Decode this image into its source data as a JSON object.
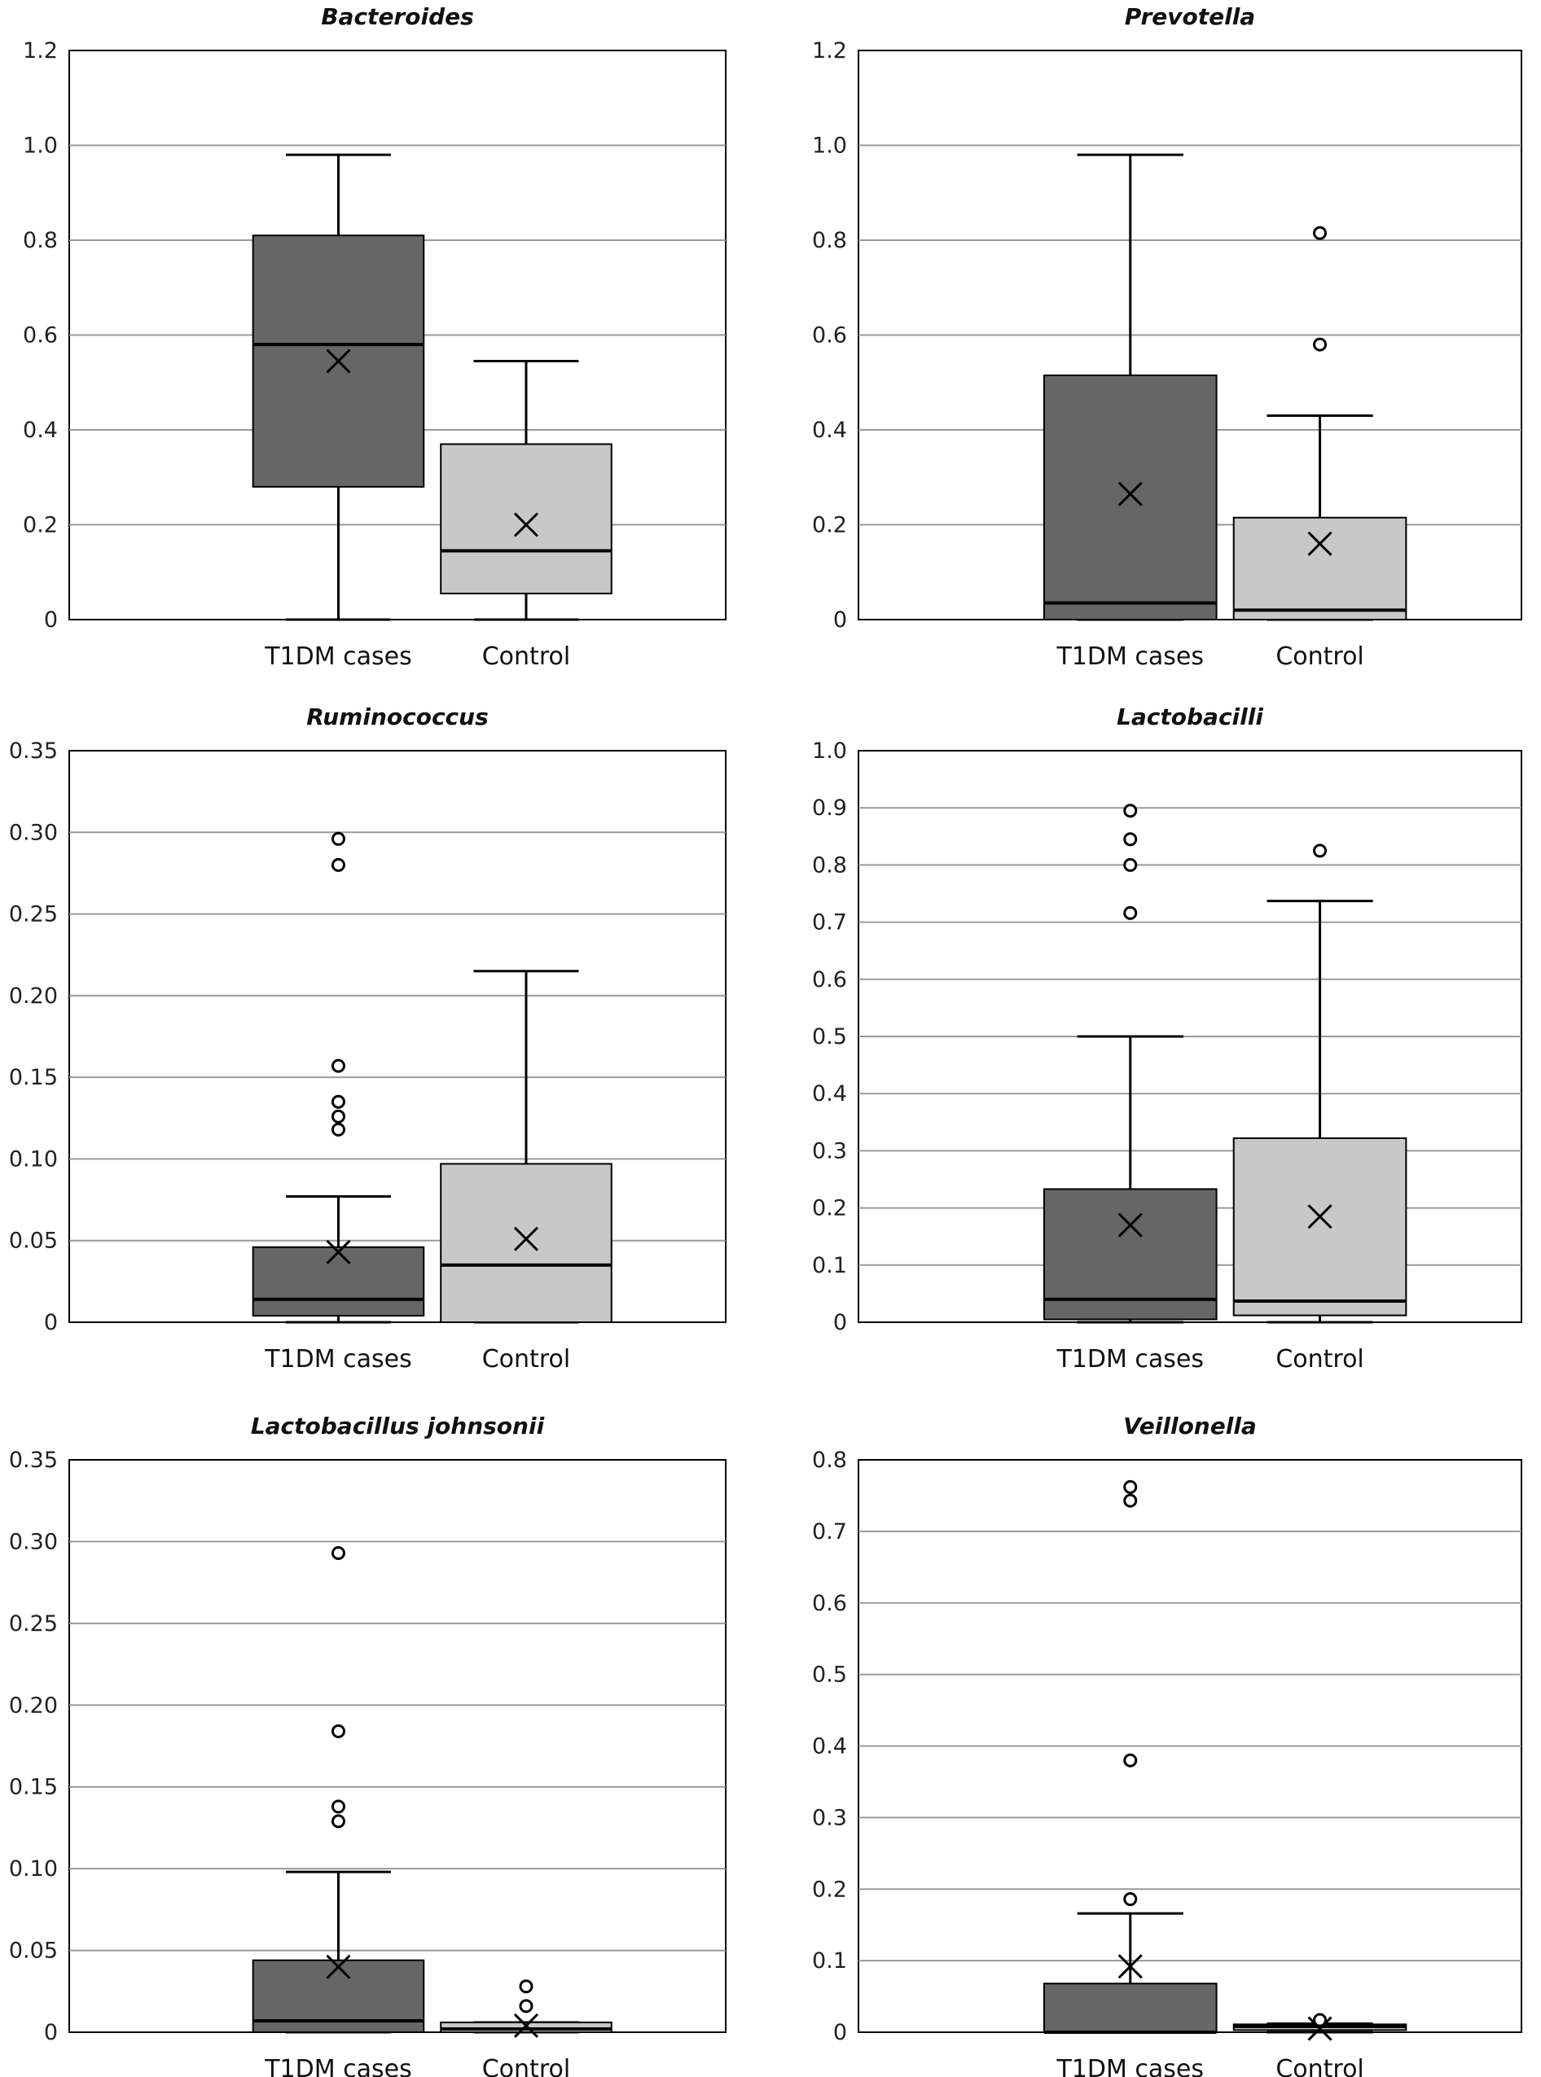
{
  "chart_data": [
    {
      "type": "box",
      "title": "Bacteroides",
      "categories": [
        "T1DM cases",
        "Control"
      ],
      "ylim": [
        0,
        1.2
      ],
      "yticks": [
        "0",
        "0.2",
        "0.4",
        "0.6",
        "0.8",
        "1.0",
        "1.2"
      ],
      "ytick_values": [
        0,
        0.2,
        0.4,
        0.6,
        0.8,
        1.0,
        1.2
      ],
      "grid": true,
      "series": [
        {
          "min": 0,
          "q1": 0.28,
          "median": 0.58,
          "q3": 0.81,
          "max": 0.98,
          "mean": 0.545,
          "outliers": []
        },
        {
          "min": 0,
          "q1": 0.055,
          "median": 0.145,
          "q3": 0.37,
          "max": 0.545,
          "mean": 0.2,
          "outliers": []
        }
      ]
    },
    {
      "type": "box",
      "title": "Prevotella",
      "categories": [
        "T1DM cases",
        "Control"
      ],
      "ylim": [
        0,
        1.2
      ],
      "yticks": [
        "0",
        "0.2",
        "0.4",
        "0.6",
        "0.8",
        "1.0",
        "1.2"
      ],
      "ytick_values": [
        0,
        0.2,
        0.4,
        0.6,
        0.8,
        1.0,
        1.2
      ],
      "grid": true,
      "series": [
        {
          "min": 0,
          "q1": 0,
          "median": 0.035,
          "q3": 0.515,
          "max": 0.98,
          "mean": 0.265,
          "outliers": []
        },
        {
          "min": 0,
          "q1": 0,
          "median": 0.02,
          "q3": 0.215,
          "max": 0.43,
          "mean": 0.16,
          "outliers": [
            0.58,
            0.815
          ]
        }
      ]
    },
    {
      "type": "box",
      "title": "Ruminococcus",
      "categories": [
        "T1DM cases",
        "Control"
      ],
      "ylim": [
        0,
        0.35
      ],
      "yticks": [
        "0",
        "0.05",
        "0.10",
        "0.15",
        "0.20",
        "0.25",
        "0.30",
        "0.35"
      ],
      "ytick_values": [
        0,
        0.05,
        0.1,
        0.15,
        0.2,
        0.25,
        0.3,
        0.35
      ],
      "grid": true,
      "series": [
        {
          "min": 0,
          "q1": 0.004,
          "median": 0.014,
          "q3": 0.046,
          "max": 0.077,
          "mean": 0.043,
          "outliers": [
            0.118,
            0.126,
            0.135,
            0.157,
            0.28,
            0.296
          ]
        },
        {
          "min": 0,
          "q1": 0,
          "median": 0.035,
          "q3": 0.097,
          "max": 0.215,
          "mean": 0.051,
          "outliers": []
        }
      ]
    },
    {
      "type": "box",
      "title": "Lactobacilli",
      "categories": [
        "T1DM cases",
        "Control"
      ],
      "ylim": [
        0,
        1.0
      ],
      "yticks": [
        "0",
        "0.1",
        "0.2",
        "0.3",
        "0.4",
        "0.5",
        "0.6",
        "0.7",
        "0.8",
        "0.9",
        "1.0"
      ],
      "ytick_values": [
        0,
        0.1,
        0.2,
        0.3,
        0.4,
        0.5,
        0.6,
        0.7,
        0.8,
        0.9,
        1.0
      ],
      "grid": true,
      "series": [
        {
          "min": 0,
          "q1": 0.005,
          "median": 0.04,
          "q3": 0.233,
          "max": 0.5,
          "mean": 0.17,
          "outliers": [
            0.716,
            0.8,
            0.845,
            0.895
          ]
        },
        {
          "min": 0,
          "q1": 0.012,
          "median": 0.037,
          "q3": 0.322,
          "max": 0.737,
          "mean": 0.185,
          "outliers": [
            0.825
          ]
        }
      ]
    },
    {
      "type": "box",
      "title": "Lactobacillus johnsonii",
      "categories": [
        "T1DM cases",
        "Control"
      ],
      "ylim": [
        0,
        0.35
      ],
      "yticks": [
        "0",
        "0.05",
        "0.10",
        "0.15",
        "0.20",
        "0.25",
        "0.30",
        "0.35"
      ],
      "ytick_values": [
        0,
        0.05,
        0.1,
        0.15,
        0.2,
        0.25,
        0.3,
        0.35
      ],
      "grid": true,
      "series": [
        {
          "min": 0,
          "q1": 0,
          "median": 0.007,
          "q3": 0.044,
          "max": 0.098,
          "mean": 0.04,
          "outliers": [
            0.129,
            0.138,
            0.184,
            0.293
          ]
        },
        {
          "min": 0,
          "q1": 0,
          "median": 0.002,
          "q3": 0.006,
          "max": 0.006,
          "mean": 0.004,
          "outliers": [
            0.016,
            0.028
          ]
        }
      ]
    },
    {
      "type": "box",
      "title": "Veillonella",
      "categories": [
        "T1DM cases",
        "Control"
      ],
      "ylim": [
        0,
        0.8
      ],
      "yticks": [
        "0",
        "0.1",
        "0.2",
        "0.3",
        "0.4",
        "0.5",
        "0.6",
        "0.7",
        "0.8"
      ],
      "ytick_values": [
        0,
        0.1,
        0.2,
        0.3,
        0.4,
        0.5,
        0.6,
        0.7,
        0.8
      ],
      "grid": true,
      "series": [
        {
          "min": 0,
          "q1": 0,
          "median": 0,
          "q3": 0.068,
          "max": 0.166,
          "mean": 0.092,
          "outliers": [
            0.186,
            0.38,
            0.743,
            0.762
          ]
        },
        {
          "min": 0,
          "q1": 0.003,
          "median": 0.008,
          "q3": 0.011,
          "max": 0.012,
          "mean": 0.005,
          "outliers": [
            0.017
          ]
        }
      ]
    }
  ],
  "colors": {
    "T1DM cases": "#666666",
    "Control": "#c8c8c8",
    "grid": "#9a9a9a"
  }
}
